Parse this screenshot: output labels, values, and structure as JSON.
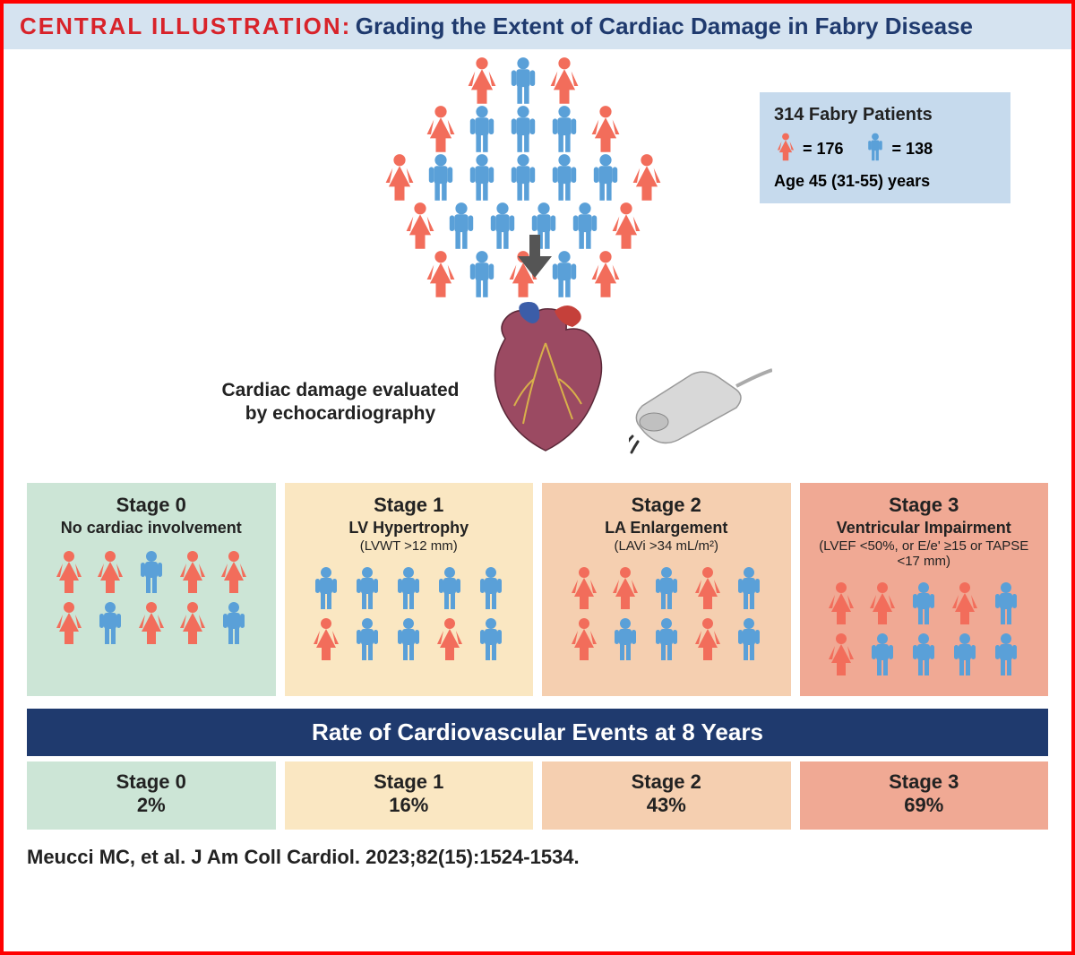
{
  "header": {
    "label": "CENTRAL ILLUSTRATION:",
    "title": "Grading the Extent of Cardiac Damage in Fabry Disease"
  },
  "colors": {
    "border": "#ff0000",
    "header_bg": "#d5e3f0",
    "header_label": "#d8232a",
    "header_title": "#1f3a6e",
    "info_box_bg": "#c6daed",
    "female": "#f26d5b",
    "male": "#5aa0d8",
    "rate_bar_bg": "#1f3a6e",
    "stage0_bg": "#cce5d6",
    "stage1_bg": "#fae7c2",
    "stage2_bg": "#f5cfb0",
    "stage3_bg": "#f0a994",
    "heart_fill": "#9b4a62",
    "heart_vessel_blue": "#3b5da8",
    "heart_vessel_red": "#c5403a",
    "probe_fill": "#d8d8d8"
  },
  "cohort": {
    "total_label": "314 Fabry Patients",
    "female_count": "= 176",
    "male_count": "= 138",
    "age": "Age 45 (31-55) years",
    "rows": [
      [
        "f",
        "m",
        "f"
      ],
      [
        "f",
        "m",
        "m",
        "m",
        "f"
      ],
      [
        "f",
        "m",
        "m",
        "m",
        "m",
        "m",
        "f"
      ],
      [
        "f",
        "m",
        "m",
        "m",
        "m",
        "f"
      ],
      [
        "f",
        "m",
        "f",
        "m",
        "f"
      ]
    ]
  },
  "heart_label": "Cardiac damage evaluated by echocardiography",
  "stages": [
    {
      "title": "Stage 0",
      "subtitle": "No cardiac involvement",
      "criteria": "",
      "bg": "#cce5d6",
      "people": [
        [
          "f",
          "f",
          "m",
          "f",
          "f"
        ],
        [
          "f",
          "m",
          "f",
          "f",
          "m"
        ]
      ]
    },
    {
      "title": "Stage 1",
      "subtitle": "LV Hypertrophy",
      "criteria": "(LVWT >12  mm)",
      "bg": "#fae7c2",
      "people": [
        [
          "m",
          "m",
          "m",
          "m",
          "m"
        ],
        [
          "f",
          "m",
          "m",
          "f",
          "m"
        ]
      ]
    },
    {
      "title": "Stage 2",
      "subtitle": "LA Enlargement",
      "criteria": "(LAVi >34 mL/m²)",
      "bg": "#f5cfb0",
      "people": [
        [
          "f",
          "f",
          "m",
          "f",
          "m"
        ],
        [
          "f",
          "m",
          "m",
          "f",
          "m"
        ]
      ]
    },
    {
      "title": "Stage 3",
      "subtitle": "Ventricular Impairment",
      "criteria": "(LVEF <50%, or E/e' ≥15 or TAPSE <17 mm)",
      "bg": "#f0a994",
      "people": [
        [
          "f",
          "f",
          "m",
          "f",
          "m"
        ],
        [
          "f",
          "m",
          "m",
          "m",
          "m"
        ]
      ]
    }
  ],
  "rate_bar": "Rate of Cardiovascular Events at 8 Years",
  "rates": [
    {
      "stage": "Stage 0",
      "pct": "2%",
      "bg": "#cce5d6"
    },
    {
      "stage": "Stage 1",
      "pct": "16%",
      "bg": "#fae7c2"
    },
    {
      "stage": "Stage 2",
      "pct": "43%",
      "bg": "#f5cfb0"
    },
    {
      "stage": "Stage 3",
      "pct": "69%",
      "bg": "#f0a994"
    }
  ],
  "citation": "Meucci MC, et al. J Am Coll Cardiol. 2023;82(15):1524-1534.",
  "icon_sizes": {
    "cohort": 44,
    "info": 26,
    "stage": 40
  }
}
